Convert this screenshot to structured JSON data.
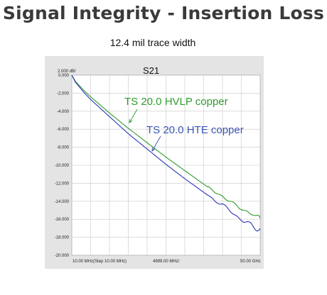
{
  "page": {
    "title": "Signal Integrity - Insertion Loss",
    "subtitle": "12.4 mil trace width"
  },
  "chart_data": {
    "type": "line",
    "title": "S21",
    "scale_label": "2.000 dB/",
    "y_ticks": [
      "0.000",
      "-2.000",
      "-4.000",
      "-6.000",
      "-8.000",
      "-10.000",
      "-12.000",
      "-14.000",
      "-16.000",
      "-18.000",
      "-20.000"
    ],
    "ylim": [
      -20,
      0
    ],
    "x_tick_labels": {
      "start": "10.00 MHz(Step 10.00 MHz)",
      "center": "4999.00 MHz/",
      "stop": "50.00 GHz"
    },
    "xlim_ghz": [
      0.01,
      50
    ],
    "grid": true,
    "series": [
      {
        "name": "TS 20.0 HVLP copper",
        "color": "#2e9b2e",
        "x": [
          0.01,
          1,
          3,
          5,
          10,
          15,
          20,
          25,
          30,
          35,
          38,
          40,
          43,
          45,
          47,
          48,
          49,
          50
        ],
        "y": [
          0.0,
          -0.7,
          -1.6,
          -2.4,
          -4.2,
          -5.9,
          -7.5,
          -9.1,
          -10.6,
          -12.1,
          -13.0,
          -13.4,
          -14.4,
          -14.7,
          -15.3,
          -15.5,
          -15.8,
          -15.9
        ]
      },
      {
        "name": "TS 20.0 HTE copper",
        "color": "#2a35b8",
        "x": [
          0.01,
          1,
          3,
          5,
          10,
          15,
          20,
          25,
          30,
          35,
          38,
          40,
          43,
          45,
          47,
          48,
          49,
          50
        ],
        "y": [
          0.0,
          -0.8,
          -1.8,
          -2.7,
          -4.6,
          -6.5,
          -8.2,
          -9.9,
          -11.5,
          -13.0,
          -13.9,
          -14.4,
          -15.4,
          -16.0,
          -16.6,
          -16.8,
          -17.0,
          -17.0
        ]
      }
    ],
    "annotations": [
      {
        "text": "TS 20.0 HVLP copper",
        "color": "#2e9b2e",
        "points_to": "TS 20.0 HVLP copper"
      },
      {
        "text": "TS 20.0 HTE copper",
        "color": "#3c55b5",
        "points_to": "TS 20.0 HTE copper"
      }
    ]
  }
}
